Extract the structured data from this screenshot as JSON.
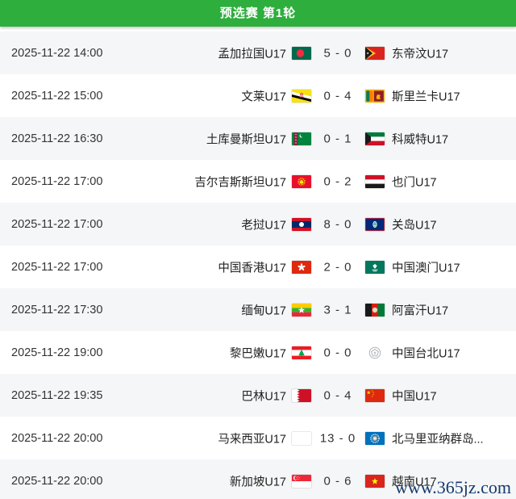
{
  "header": {
    "title": "预选赛 第1轮"
  },
  "watermark": {
    "text": "www.365jz.com"
  },
  "colors": {
    "header_green": "#2eae3d",
    "row_stripe_gray": "#f5f6f7",
    "row_white": "#ffffff",
    "time_text": "#333333",
    "team_text": "#222222",
    "watermark_blue": "#163a6e"
  },
  "matches": [
    {
      "datetime": "2025-11-22 14:00",
      "home": "孟加拉国U17",
      "home_flag": "bangladesh-flag-icon",
      "home_score": "5",
      "away_score": "0",
      "away": "东帝汶U17",
      "away_flag": "east-timor-flag-icon"
    },
    {
      "datetime": "2025-11-22 15:00",
      "home": "文莱U17",
      "home_flag": "brunei-flag-icon",
      "home_score": "0",
      "away_score": "4",
      "away": "斯里兰卡U17",
      "away_flag": "sri-lanka-flag-icon"
    },
    {
      "datetime": "2025-11-22 16:30",
      "home": "土库曼斯坦U17",
      "home_flag": "turkmenistan-flag-icon",
      "home_score": "0",
      "away_score": "1",
      "away": "科威特U17",
      "away_flag": "kuwait-flag-icon"
    },
    {
      "datetime": "2025-11-22 17:00",
      "home": "吉尔吉斯斯坦U17",
      "home_flag": "kyrgyzstan-flag-icon",
      "home_score": "0",
      "away_score": "2",
      "away": "也门U17",
      "away_flag": "yemen-flag-icon"
    },
    {
      "datetime": "2025-11-22 17:00",
      "home": "老挝U17",
      "home_flag": "laos-flag-icon",
      "home_score": "8",
      "away_score": "0",
      "away": "关岛U17",
      "away_flag": "guam-flag-icon"
    },
    {
      "datetime": "2025-11-22 17:00",
      "home": "中国香港U17",
      "home_flag": "hong-kong-flag-icon",
      "home_score": "2",
      "away_score": "0",
      "away": "中国澳门U17",
      "away_flag": "macau-flag-icon"
    },
    {
      "datetime": "2025-11-22 17:30",
      "home": "缅甸U17",
      "home_flag": "myanmar-flag-icon",
      "home_score": "3",
      "away_score": "1",
      "away": "阿富汗U17",
      "away_flag": "afghanistan-flag-icon"
    },
    {
      "datetime": "2025-11-22 19:00",
      "home": "黎巴嫩U17",
      "home_flag": "lebanon-flag-icon",
      "home_score": "0",
      "away_score": "0",
      "away": "中国台北U17",
      "away_flag": "chinese-taipei-emblem-icon"
    },
    {
      "datetime": "2025-11-22 19:35",
      "home": "巴林U17",
      "home_flag": "bahrain-flag-icon",
      "home_score": "0",
      "away_score": "4",
      "away": "中国U17",
      "away_flag": "china-flag-icon"
    },
    {
      "datetime": "2025-11-22 20:00",
      "home": "马来西亚U17",
      "home_flag": "malaysia-flag-icon",
      "home_score": "13",
      "away_score": "0",
      "away": "北马里亚纳群岛...",
      "away_flag": "northern-mariana-flag-icon"
    },
    {
      "datetime": "2025-11-22 20:00",
      "home": "新加坡U17",
      "home_flag": "singapore-flag-icon",
      "home_score": "0",
      "away_score": "6",
      "away": "越南U17",
      "away_flag": "vietnam-flag-icon"
    }
  ]
}
